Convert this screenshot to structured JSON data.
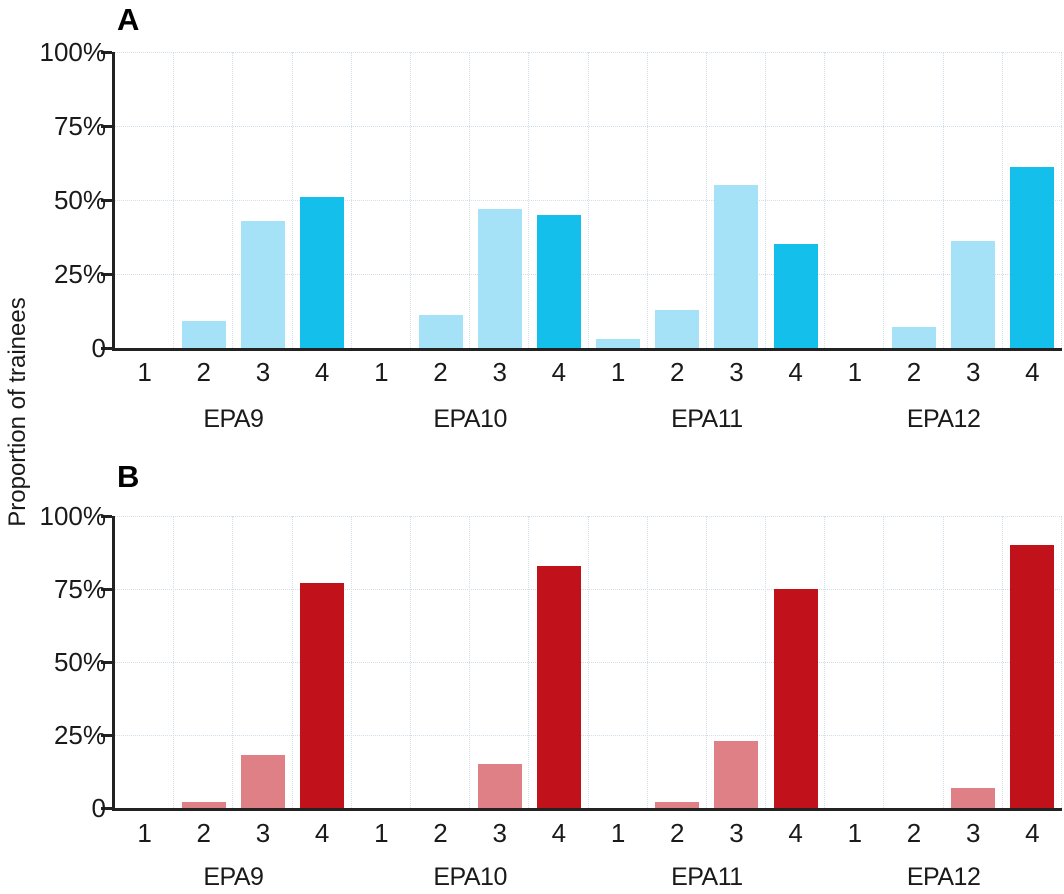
{
  "figure": {
    "ylabel": "Proportion of trainees"
  },
  "style": {
    "grid_color": "#cfe0ec",
    "axis_color": "#222222",
    "text_color": "#1a1a1a",
    "panel_a_light": "#a5e2f8",
    "panel_a_dark": "#14bfec",
    "panel_b_light": "#df8087",
    "panel_b_dark": "#c1121b"
  },
  "chart_data": [
    {
      "type": "bar",
      "panel_label": "A",
      "ylabel": "Proportion of trainees",
      "ylim": [
        0,
        100
      ],
      "grid": true,
      "legend_position": "none",
      "yticks": [
        {
          "label": "100%",
          "value": 100
        },
        {
          "label": "75%",
          "value": 75
        },
        {
          "label": "50%",
          "value": 50
        },
        {
          "label": "25%",
          "value": 25
        },
        {
          "label": "0",
          "value": 0
        }
      ],
      "level_labels": [
        "1",
        "2",
        "3",
        "4"
      ],
      "groups": [
        {
          "name": "EPA9",
          "values": [
            0,
            9,
            43,
            51
          ]
        },
        {
          "name": "EPA10",
          "values": [
            0,
            11,
            47,
            45
          ]
        },
        {
          "name": "EPA11",
          "values": [
            3,
            13,
            55,
            35
          ]
        },
        {
          "name": "EPA12",
          "values": [
            0,
            7,
            36,
            61
          ]
        }
      ],
      "colors": {
        "levels_1_3": "#a5e2f8",
        "level_4": "#14bfec"
      }
    },
    {
      "type": "bar",
      "panel_label": "B",
      "ylabel": "Proportion of trainees",
      "ylim": [
        0,
        100
      ],
      "grid": true,
      "legend_position": "none",
      "yticks": [
        {
          "label": "100%",
          "value": 100
        },
        {
          "label": "75%",
          "value": 75
        },
        {
          "label": "50%",
          "value": 50
        },
        {
          "label": "25%",
          "value": 25
        },
        {
          "label": "0",
          "value": 0
        }
      ],
      "level_labels": [
        "1",
        "2",
        "3",
        "4"
      ],
      "groups": [
        {
          "name": "EPA9",
          "values": [
            0,
            2,
            18,
            77
          ]
        },
        {
          "name": "EPA10",
          "values": [
            0,
            0,
            15,
            83
          ]
        },
        {
          "name": "EPA11",
          "values": [
            0,
            2,
            23,
            75
          ]
        },
        {
          "name": "EPA12",
          "values": [
            0,
            0,
            7,
            90
          ]
        }
      ],
      "colors": {
        "levels_1_3": "#df8087",
        "level_4": "#c1121b"
      }
    }
  ]
}
